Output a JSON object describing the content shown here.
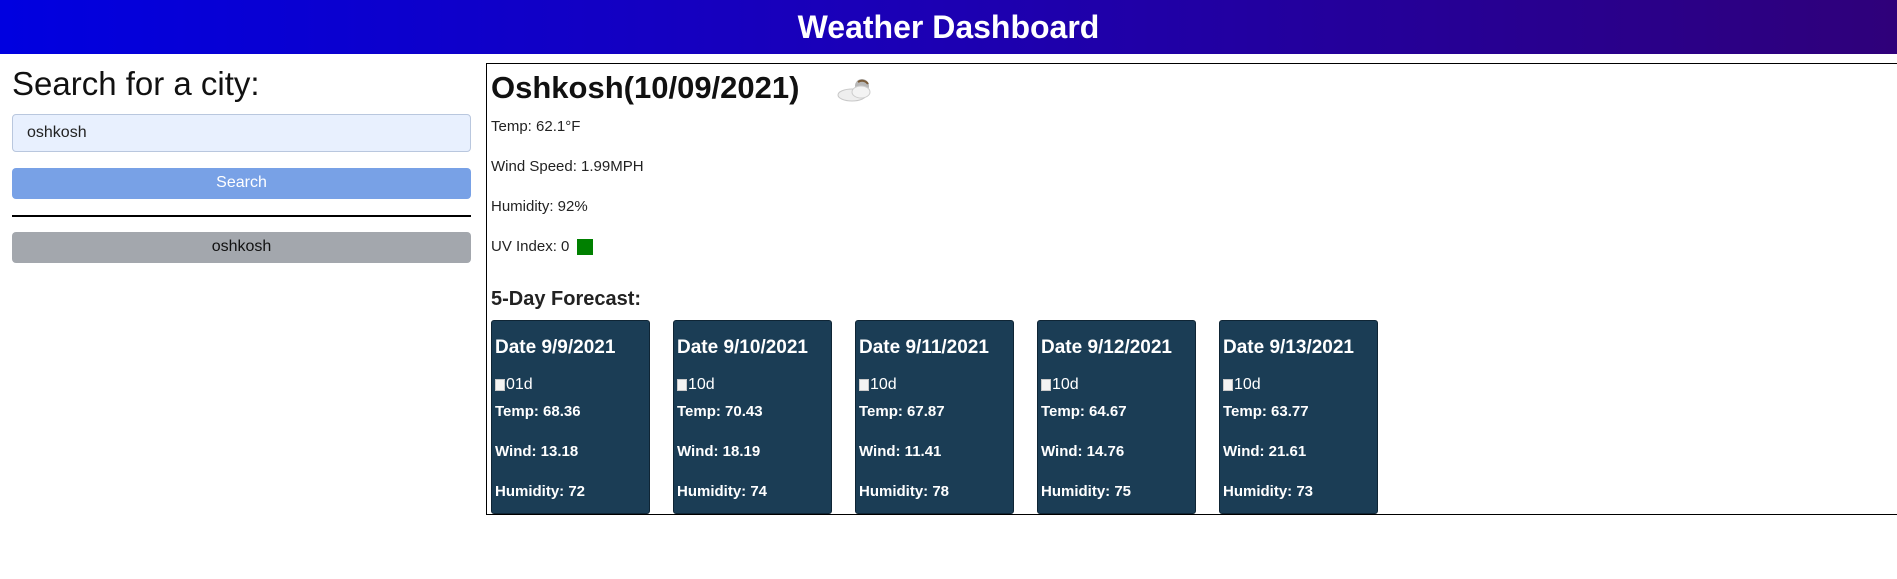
{
  "header": {
    "title": "Weather Dashboard"
  },
  "sidebar": {
    "heading": "Search for a city:",
    "search_value": "oshkosh",
    "search_label": "Search",
    "history": [
      {
        "label": "oshkosh"
      }
    ]
  },
  "current": {
    "city": "Oshkosh",
    "date": "(10/09/2021)",
    "icon": "partly-cloudy-icon",
    "temp": "Temp: 62.1°F",
    "wind": "Wind Speed: 1.99MPH",
    "humidity": "Humidity: 92%",
    "uv": "UV Index: 0",
    "uv_color": "#008000"
  },
  "forecast": {
    "title": "5-Day Forecast:",
    "days": [
      {
        "date": "Date 9/9/2021",
        "icon_alt": "01d",
        "temp": "Temp: 68.36",
        "wind": "Wind: 13.18",
        "humidity": "Humidity: 72"
      },
      {
        "date": "Date 9/10/2021",
        "icon_alt": "10d",
        "temp": "Temp: 70.43",
        "wind": "Wind: 18.19",
        "humidity": "Humidity: 74"
      },
      {
        "date": "Date 9/11/2021",
        "icon_alt": "10d",
        "temp": "Temp: 67.87",
        "wind": "Wind: 11.41",
        "humidity": "Humidity: 78"
      },
      {
        "date": "Date 9/12/2021",
        "icon_alt": "10d",
        "temp": "Temp: 64.67",
        "wind": "Wind: 14.76",
        "humidity": "Humidity: 75"
      },
      {
        "date": "Date 9/13/2021",
        "icon_alt": "10d",
        "temp": "Temp: 63.77",
        "wind": "Wind: 21.61",
        "humidity": "Humidity: 73"
      }
    ]
  },
  "colors": {
    "header_start": "#0000e0",
    "header_end": "#2f007a",
    "search_button": "#78a1e6",
    "history_button": "#a3a7ad",
    "card_background": "#1b3d55"
  }
}
